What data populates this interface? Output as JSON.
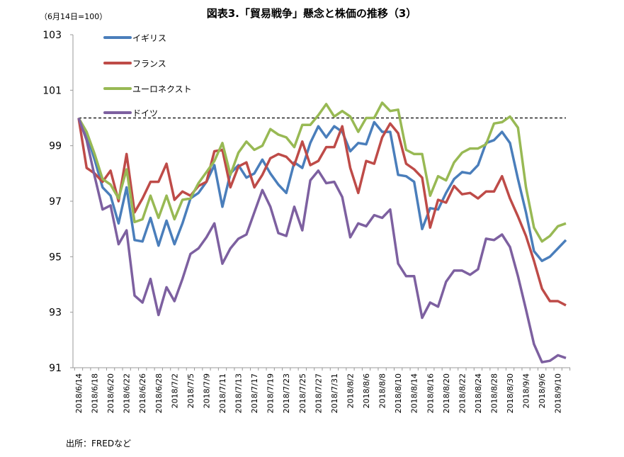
{
  "chart_data": {
    "type": "line",
    "title": "図表3.「貿易戦争」懸念と株価の推移（3）",
    "subtitle": "（6月14日=100）",
    "source": "出所：FREDなど",
    "xlabel": "",
    "ylabel": "",
    "ylim": [
      91,
      103
    ],
    "yticks": [
      91,
      93,
      95,
      97,
      99,
      101,
      103
    ],
    "reference_line": 100,
    "grid": false,
    "legend_position": "top-left",
    "x": [
      "2018/6/14",
      "2018/6/15",
      "2018/6/18",
      "2018/6/19",
      "2018/6/20",
      "2018/6/21",
      "2018/6/22",
      "2018/6/25",
      "2018/6/26",
      "2018/6/27",
      "2018/6/28",
      "2018/6/29",
      "2018/7/2",
      "2018/7/3",
      "2018/7/5",
      "2018/7/6",
      "2018/7/9",
      "2018/7/10",
      "2018/7/11",
      "2018/7/12",
      "2018/7/13",
      "2018/7/16",
      "2018/7/17",
      "2018/7/18",
      "2018/7/19",
      "2018/7/20",
      "2018/7/23",
      "2018/7/24",
      "2018/7/25",
      "2018/7/26",
      "2018/7/27",
      "2018/7/30",
      "2018/7/31",
      "2018/8/1",
      "2018/8/2",
      "2018/8/3",
      "2018/8/6",
      "2018/8/7",
      "2018/8/8",
      "2018/8/9",
      "2018/8/10",
      "2018/8/13",
      "2018/8/14",
      "2018/8/15",
      "2018/8/16",
      "2018/8/17",
      "2018/8/20",
      "2018/8/21",
      "2018/8/22",
      "2018/8/23",
      "2018/8/24",
      "2018/8/27",
      "2018/8/28",
      "2018/8/29",
      "2018/8/30",
      "2018/8/31",
      "2018/9/4",
      "2018/9/5",
      "2018/9/6",
      "2018/9/7",
      "2018/9/10",
      "2018/9/11"
    ],
    "x_tick_labels": [
      "2018/6/14",
      "2018/6/18",
      "2018/6/20",
      "2018/6/22",
      "2018/6/26",
      "2018/6/28",
      "2018/7/2",
      "2018/7/5",
      "2018/7/9",
      "2018/7/11",
      "2018/7/13",
      "2018/7/17",
      "2018/7/19",
      "2018/7/23",
      "2018/7/25",
      "2018/7/27",
      "2018/7/31",
      "2018/8/2",
      "2018/8/6",
      "2018/8/8",
      "2018/8/10",
      "2018/8/14",
      "2018/8/16",
      "2018/8/20",
      "2018/8/22",
      "2018/8/24",
      "2018/8/28",
      "2018/8/30",
      "2018/9/4",
      "2018/9/6",
      "2018/9/10"
    ],
    "series": [
      {
        "name": "イギリス",
        "color": "#4a7ebb",
        "values": [
          100,
          99.4,
          98.5,
          97.5,
          97.2,
          96.2,
          97.5,
          95.6,
          95.55,
          96.4,
          95.4,
          96.3,
          95.45,
          96.2,
          97.1,
          97.3,
          97.7,
          98.3,
          96.8,
          98.0,
          98.3,
          97.85,
          98.0,
          98.5,
          98.0,
          97.6,
          97.3,
          98.4,
          98.2,
          99.1,
          99.7,
          99.3,
          99.7,
          99.5,
          98.8,
          99.1,
          99.05,
          99.85,
          99.5,
          99.5,
          97.95,
          97.9,
          97.7,
          96.0,
          96.75,
          96.7,
          97.3,
          97.8,
          98.05,
          98.0,
          98.3,
          99.1,
          99.2,
          99.5,
          99.1,
          97.8,
          96.6,
          95.2,
          94.85,
          95.0,
          95.3,
          95.6
        ]
      },
      {
        "name": "フランス",
        "color": "#be4b48",
        "values": [
          100,
          98.2,
          98.0,
          97.7,
          98.1,
          97.0,
          98.7,
          96.6,
          97.1,
          97.7,
          97.7,
          98.35,
          97.05,
          97.35,
          97.2,
          97.55,
          97.7,
          98.8,
          98.85,
          97.5,
          98.25,
          98.4,
          97.5,
          97.95,
          98.55,
          98.7,
          98.6,
          98.3,
          99.15,
          98.3,
          98.45,
          98.95,
          98.95,
          99.7,
          98.2,
          97.3,
          98.45,
          98.35,
          99.3,
          99.8,
          99.45,
          98.35,
          98.15,
          97.85,
          96.05,
          97.05,
          96.95,
          97.55,
          97.25,
          97.3,
          97.1,
          97.35,
          97.35,
          97.9,
          97.1,
          96.45,
          95.75,
          94.85,
          93.85,
          93.4,
          93.4,
          93.25
        ]
      },
      {
        "name": "ユーロネクスト",
        "color": "#98b954",
        "values": [
          100,
          99.5,
          98.7,
          97.8,
          97.6,
          97.1,
          98.15,
          96.25,
          96.35,
          97.2,
          96.4,
          97.2,
          96.35,
          97.05,
          97.1,
          97.65,
          98.05,
          98.45,
          99.1,
          97.95,
          98.75,
          99.15,
          98.85,
          99.0,
          99.6,
          99.4,
          99.3,
          98.95,
          99.75,
          99.75,
          100.1,
          100.5,
          100.05,
          100.25,
          100.05,
          99.5,
          100.0,
          100.0,
          100.55,
          100.25,
          100.3,
          98.85,
          98.7,
          98.7,
          97.2,
          97.9,
          97.75,
          98.4,
          98.75,
          98.9,
          98.9,
          99.05,
          99.8,
          99.85,
          100.05,
          99.65,
          97.5,
          96.05,
          95.55,
          95.75,
          96.1,
          96.2
        ]
      },
      {
        "name": "ドイツ",
        "color": "#7d60a0",
        "values": [
          100,
          99.2,
          97.9,
          96.7,
          96.85,
          95.45,
          95.95,
          93.6,
          93.35,
          94.2,
          92.9,
          93.9,
          93.4,
          94.2,
          95.1,
          95.3,
          95.7,
          96.2,
          94.75,
          95.3,
          95.65,
          95.8,
          96.6,
          97.4,
          96.8,
          95.85,
          95.75,
          96.8,
          95.95,
          97.75,
          98.1,
          97.65,
          97.7,
          97.15,
          95.7,
          96.2,
          96.1,
          96.5,
          96.4,
          96.7,
          94.75,
          94.3,
          94.3,
          92.8,
          93.35,
          93.2,
          94.1,
          94.5,
          94.5,
          94.35,
          94.55,
          95.65,
          95.6,
          95.8,
          95.35,
          94.3,
          93.1,
          91.85,
          91.2,
          91.25,
          91.45,
          91.35
        ]
      }
    ]
  }
}
